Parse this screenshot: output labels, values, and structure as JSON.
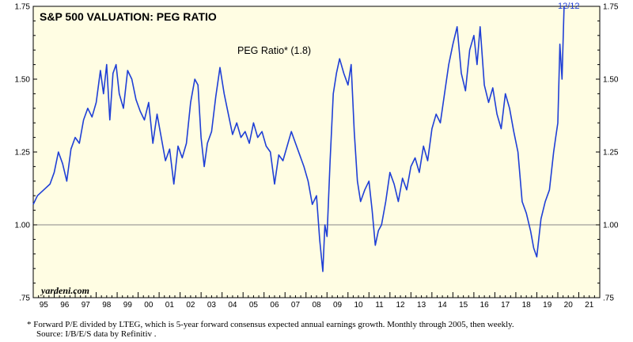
{
  "chart_data": {
    "type": "line",
    "title": "S&P 500 VALUATION: PEG RATIO",
    "legend_label": "PEG Ratio* (1.8)",
    "latest_label": "12/12",
    "brand": "yardeni.com",
    "ylim": [
      0.75,
      1.75
    ],
    "y_ticks": [
      {
        "value": 0.75,
        "label": ".75"
      },
      {
        "value": 1.0,
        "label": "1.00"
      },
      {
        "value": 1.25,
        "label": "1.25"
      },
      {
        "value": 1.5,
        "label": "1.50"
      },
      {
        "value": 1.75,
        "label": "1.75"
      }
    ],
    "reference_line": 1.0,
    "xlim": [
      1995,
      2022
    ],
    "x_ticks": [
      "95",
      "96",
      "97",
      "98",
      "99",
      "00",
      "01",
      "02",
      "03",
      "04",
      "05",
      "06",
      "07",
      "08",
      "09",
      "10",
      "11",
      "12",
      "13",
      "14",
      "15",
      "16",
      "17",
      "18",
      "19",
      "20",
      "21"
    ],
    "series": [
      {
        "color": "#1f3fd6",
        "points": [
          [
            1995.0,
            1.07
          ],
          [
            1995.2,
            1.1
          ],
          [
            1995.5,
            1.12
          ],
          [
            1995.8,
            1.14
          ],
          [
            1996.0,
            1.18
          ],
          [
            1996.2,
            1.25
          ],
          [
            1996.4,
            1.21
          ],
          [
            1996.6,
            1.15
          ],
          [
            1996.8,
            1.26
          ],
          [
            1997.0,
            1.3
          ],
          [
            1997.2,
            1.28
          ],
          [
            1997.4,
            1.36
          ],
          [
            1997.6,
            1.4
          ],
          [
            1997.8,
            1.37
          ],
          [
            1998.0,
            1.42
          ],
          [
            1998.2,
            1.53
          ],
          [
            1998.35,
            1.45
          ],
          [
            1998.5,
            1.55
          ],
          [
            1998.65,
            1.36
          ],
          [
            1998.8,
            1.52
          ],
          [
            1998.95,
            1.55
          ],
          [
            1999.1,
            1.45
          ],
          [
            1999.3,
            1.4
          ],
          [
            1999.5,
            1.53
          ],
          [
            1999.7,
            1.5
          ],
          [
            1999.9,
            1.43
          ],
          [
            2000.1,
            1.39
          ],
          [
            2000.3,
            1.36
          ],
          [
            2000.5,
            1.42
          ],
          [
            2000.7,
            1.28
          ],
          [
            2000.9,
            1.38
          ],
          [
            2001.1,
            1.3
          ],
          [
            2001.3,
            1.22
          ],
          [
            2001.5,
            1.26
          ],
          [
            2001.7,
            1.14
          ],
          [
            2001.9,
            1.27
          ],
          [
            2002.1,
            1.23
          ],
          [
            2002.3,
            1.28
          ],
          [
            2002.5,
            1.42
          ],
          [
            2002.7,
            1.5
          ],
          [
            2002.85,
            1.48
          ],
          [
            2003.0,
            1.3
          ],
          [
            2003.15,
            1.2
          ],
          [
            2003.3,
            1.28
          ],
          [
            2003.5,
            1.32
          ],
          [
            2003.7,
            1.44
          ],
          [
            2003.9,
            1.54
          ],
          [
            2004.1,
            1.45
          ],
          [
            2004.3,
            1.38
          ],
          [
            2004.5,
            1.31
          ],
          [
            2004.7,
            1.35
          ],
          [
            2004.9,
            1.3
          ],
          [
            2005.1,
            1.32
          ],
          [
            2005.3,
            1.28
          ],
          [
            2005.5,
            1.35
          ],
          [
            2005.7,
            1.3
          ],
          [
            2005.9,
            1.32
          ],
          [
            2006.1,
            1.27
          ],
          [
            2006.3,
            1.25
          ],
          [
            2006.5,
            1.14
          ],
          [
            2006.7,
            1.24
          ],
          [
            2006.9,
            1.22
          ],
          [
            2007.1,
            1.27
          ],
          [
            2007.3,
            1.32
          ],
          [
            2007.5,
            1.28
          ],
          [
            2007.7,
            1.24
          ],
          [
            2007.9,
            1.2
          ],
          [
            2008.1,
            1.15
          ],
          [
            2008.3,
            1.07
          ],
          [
            2008.5,
            1.1
          ],
          [
            2008.65,
            0.95
          ],
          [
            2008.8,
            0.84
          ],
          [
            2008.9,
            1.0
          ],
          [
            2009.0,
            0.96
          ],
          [
            2009.15,
            1.22
          ],
          [
            2009.3,
            1.45
          ],
          [
            2009.45,
            1.52
          ],
          [
            2009.6,
            1.57
          ],
          [
            2009.8,
            1.52
          ],
          [
            2010.0,
            1.48
          ],
          [
            2010.15,
            1.55
          ],
          [
            2010.3,
            1.32
          ],
          [
            2010.45,
            1.15
          ],
          [
            2010.6,
            1.08
          ],
          [
            2010.8,
            1.12
          ],
          [
            2011.0,
            1.15
          ],
          [
            2011.15,
            1.05
          ],
          [
            2011.3,
            0.93
          ],
          [
            2011.45,
            0.98
          ],
          [
            2011.6,
            1.0
          ],
          [
            2011.8,
            1.08
          ],
          [
            2012.0,
            1.18
          ],
          [
            2012.2,
            1.14
          ],
          [
            2012.4,
            1.08
          ],
          [
            2012.6,
            1.16
          ],
          [
            2012.8,
            1.12
          ],
          [
            2013.0,
            1.2
          ],
          [
            2013.2,
            1.23
          ],
          [
            2013.4,
            1.18
          ],
          [
            2013.6,
            1.27
          ],
          [
            2013.8,
            1.22
          ],
          [
            2014.0,
            1.33
          ],
          [
            2014.2,
            1.38
          ],
          [
            2014.4,
            1.35
          ],
          [
            2014.6,
            1.45
          ],
          [
            2014.8,
            1.55
          ],
          [
            2015.0,
            1.62
          ],
          [
            2015.2,
            1.68
          ],
          [
            2015.4,
            1.52
          ],
          [
            2015.6,
            1.46
          ],
          [
            2015.8,
            1.6
          ],
          [
            2016.0,
            1.65
          ],
          [
            2016.15,
            1.55
          ],
          [
            2016.3,
            1.68
          ],
          [
            2016.5,
            1.48
          ],
          [
            2016.7,
            1.42
          ],
          [
            2016.9,
            1.47
          ],
          [
            2017.1,
            1.38
          ],
          [
            2017.3,
            1.33
          ],
          [
            2017.5,
            1.45
          ],
          [
            2017.7,
            1.4
          ],
          [
            2017.9,
            1.32
          ],
          [
            2018.1,
            1.25
          ],
          [
            2018.3,
            1.08
          ],
          [
            2018.5,
            1.04
          ],
          [
            2018.7,
            0.98
          ],
          [
            2018.85,
            0.92
          ],
          [
            2019.0,
            0.89
          ],
          [
            2019.2,
            1.02
          ],
          [
            2019.4,
            1.08
          ],
          [
            2019.6,
            1.12
          ],
          [
            2019.8,
            1.25
          ],
          [
            2019.9,
            1.3
          ],
          [
            2020.0,
            1.35
          ],
          [
            2020.1,
            1.62
          ],
          [
            2020.2,
            1.5
          ],
          [
            2020.3,
            1.76
          ]
        ]
      }
    ]
  },
  "footnote": {
    "line1": "*   Forward P/E divided by LTEG, which is 5-year forward consensus expected annual earnings growth. Monthly through 2005, then weekly.",
    "line2": "Source: I/B/E/S data by Refinitiv ."
  },
  "colors": {
    "plot_bg": "#fffde3",
    "series": "#1f3fd6"
  }
}
